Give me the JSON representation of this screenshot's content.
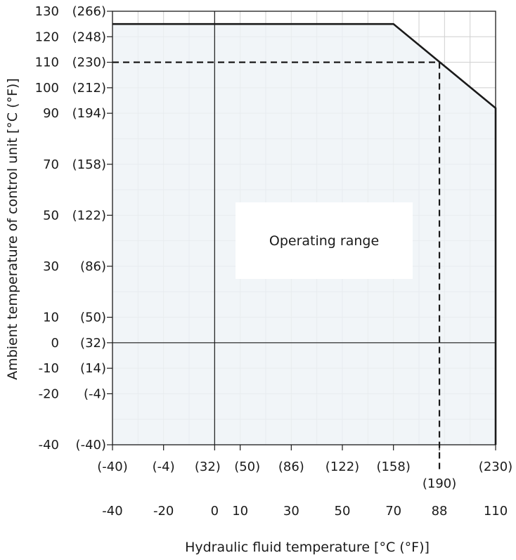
{
  "chart_data": {
    "type": "area",
    "xlabel": "Hydraulic fluid temperature [°C (°F)]",
    "ylabel": "Ambient temperature of control unit [°C (°F)]",
    "xlim": [
      -40,
      110
    ],
    "ylim": [
      -40,
      130
    ],
    "grid": true,
    "x_ticks": [
      {
        "c": -40,
        "label": "-40",
        "f_label": "(-40)"
      },
      {
        "c": -20,
        "label": "-20",
        "f_label": "(-4)"
      },
      {
        "c": 0,
        "label": "0",
        "f_label": "(32)"
      },
      {
        "c": 10,
        "label": "10",
        "f_label": "(50)"
      },
      {
        "c": 30,
        "label": "30",
        "f_label": "(86)"
      },
      {
        "c": 50,
        "label": "50",
        "f_label": "(122)"
      },
      {
        "c": 70,
        "label": "70",
        "f_label": "(158)"
      },
      {
        "c": 88,
        "label": "88",
        "f_label": "(190)"
      },
      {
        "c": 110,
        "label": "110",
        "f_label": "(230)"
      }
    ],
    "y_ticks": [
      {
        "c": 130,
        "label": "130",
        "f_label": "(266)"
      },
      {
        "c": 120,
        "label": "120",
        "f_label": "(248)"
      },
      {
        "c": 110,
        "label": "110",
        "f_label": "(230)"
      },
      {
        "c": 100,
        "label": "100",
        "f_label": "(212)"
      },
      {
        "c": 90,
        "label": "90",
        "f_label": "(194)"
      },
      {
        "c": 70,
        "label": "70",
        "f_label": "(158)"
      },
      {
        "c": 50,
        "label": "50",
        "f_label": "(122)"
      },
      {
        "c": 30,
        "label": "30",
        "f_label": "(86)"
      },
      {
        "c": 10,
        "label": "10",
        "f_label": "(50)"
      },
      {
        "c": 0,
        "label": "0",
        "f_label": "(32)"
      },
      {
        "c": -10,
        "label": "-10",
        "f_label": "(14)"
      },
      {
        "c": -20,
        "label": "-20",
        "f_label": "(-4)"
      },
      {
        "c": -40,
        "label": "-40",
        "f_label": "(-40)"
      }
    ],
    "operating_range": {
      "label": "Operating range",
      "boundary": [
        [
          -40,
          125
        ],
        [
          70,
          125
        ],
        [
          110,
          92
        ],
        [
          110,
          -40
        ],
        [
          -40,
          -40
        ]
      ]
    },
    "reference_point": {
      "x": 88,
      "y": 110
    },
    "colors": {
      "fill": "#eef3f6",
      "grid": "#cfcfcf",
      "line": "#1a1a1a",
      "label_box": "#ffffff"
    }
  }
}
